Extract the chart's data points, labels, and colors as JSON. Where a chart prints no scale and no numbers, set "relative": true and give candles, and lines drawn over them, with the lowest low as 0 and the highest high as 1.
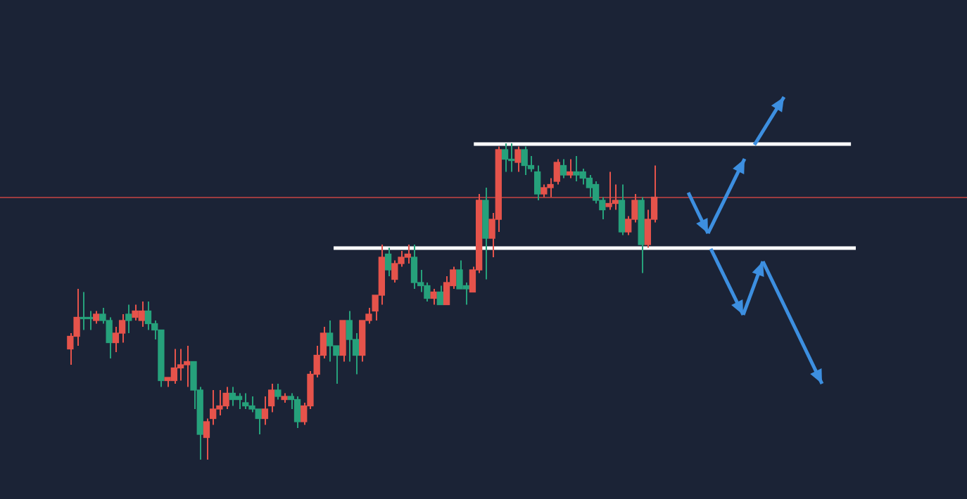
{
  "chart_data": {
    "type": "candlestick",
    "relative": true,
    "categories": [
      null,
      null,
      null,
      null,
      null,
      null,
      null,
      null,
      null,
      null,
      null,
      null,
      null,
      null,
      null,
      null,
      null,
      null,
      null,
      null,
      null,
      null,
      null,
      null,
      null,
      null,
      null,
      null,
      null,
      null,
      null,
      null,
      null,
      null,
      null,
      null,
      null,
      null,
      null,
      null,
      null,
      null,
      null,
      null,
      null,
      null,
      null,
      null,
      null,
      null,
      null,
      null,
      null,
      null,
      null,
      null,
      null,
      null,
      null,
      null,
      null,
      null,
      null,
      null,
      null,
      null,
      null,
      null,
      null,
      null,
      null,
      null,
      null,
      null,
      null,
      null,
      null,
      null,
      null,
      null,
      null,
      null,
      null,
      null,
      null,
      null,
      null,
      null,
      null,
      null,
      null
    ],
    "ohlc": [
      [
        0.35,
        0.4,
        0.3,
        0.39
      ],
      [
        0.39,
        0.54,
        0.36,
        0.45
      ],
      [
        0.45,
        0.53,
        0.41,
        0.45
      ],
      [
        0.45,
        0.47,
        0.41,
        0.45
      ],
      [
        0.44,
        0.47,
        0.43,
        0.46
      ],
      [
        0.46,
        0.48,
        0.43,
        0.44
      ],
      [
        0.44,
        0.45,
        0.32,
        0.37
      ],
      [
        0.37,
        0.42,
        0.34,
        0.4
      ],
      [
        0.4,
        0.46,
        0.37,
        0.44
      ],
      [
        0.46,
        0.49,
        0.4,
        0.44
      ],
      [
        0.45,
        0.49,
        0.44,
        0.47
      ],
      [
        0.44,
        0.5,
        0.42,
        0.47
      ],
      [
        0.47,
        0.5,
        0.41,
        0.43
      ],
      [
        0.43,
        0.44,
        0.38,
        0.41
      ],
      [
        0.41,
        0.41,
        0.23,
        0.25
      ],
      [
        0.25,
        0.26,
        0.23,
        0.26
      ],
      [
        0.25,
        0.35,
        0.24,
        0.29
      ],
      [
        0.29,
        0.35,
        0.25,
        0.3
      ],
      [
        0.3,
        0.36,
        0.23,
        0.31
      ],
      [
        0.31,
        0.31,
        0.16,
        0.22
      ],
      [
        0.22,
        0.23,
        0,
        0.08
      ],
      [
        0.07,
        0.13,
        0,
        0.12
      ],
      [
        0.13,
        0.22,
        0.11,
        0.16
      ],
      [
        0.16,
        0.22,
        0.14,
        0.17
      ],
      [
        0.17,
        0.23,
        0.16,
        0.21
      ],
      [
        0.21,
        0.23,
        0.17,
        0.19
      ],
      [
        0.2,
        0.21,
        0.16,
        0.19
      ],
      [
        0.18,
        0.21,
        0.16,
        0.17
      ],
      [
        0.17,
        0.2,
        0.15,
        0.16
      ],
      [
        0.16,
        0.16,
        0.08,
        0.13
      ],
      [
        0.13,
        0.2,
        0.11,
        0.16
      ],
      [
        0.17,
        0.24,
        0.15,
        0.22
      ],
      [
        0.22,
        0.24,
        0.19,
        0.2
      ],
      [
        0.19,
        0.21,
        0.18,
        0.2
      ],
      [
        0.2,
        0.21,
        0.16,
        0.19
      ],
      [
        0.19,
        0.2,
        0.1,
        0.12
      ],
      [
        0.12,
        0.18,
        0.11,
        0.17
      ],
      [
        0.17,
        0.28,
        0.16,
        0.27
      ],
      [
        0.27,
        0.36,
        0.26,
        0.33
      ],
      [
        0.33,
        0.42,
        0.32,
        0.4
      ],
      [
        0.4,
        0.44,
        0.31,
        0.36
      ],
      [
        0.36,
        0.36,
        0.24,
        0.33
      ],
      [
        0.33,
        0.44,
        0.31,
        0.44
      ],
      [
        0.44,
        0.47,
        0.31,
        0.38
      ],
      [
        0.38,
        0.4,
        0.27,
        0.33
      ],
      [
        0.33,
        0.44,
        0.31,
        0.44
      ],
      [
        0.44,
        0.48,
        0.43,
        0.46
      ],
      [
        0.47,
        0.52,
        0.44,
        0.52
      ],
      [
        0.52,
        0.68,
        0.49,
        0.64
      ],
      [
        0.65,
        0.67,
        0.58,
        0.6
      ],
      [
        0.57,
        0.63,
        0.56,
        0.62
      ],
      [
        0.62,
        0.66,
        0.61,
        0.64
      ],
      [
        0.64,
        0.68,
        0.62,
        0.65
      ],
      [
        0.64,
        0.68,
        0.54,
        0.56
      ],
      [
        0.56,
        0.6,
        0.53,
        0.55
      ],
      [
        0.55,
        0.56,
        0.5,
        0.51
      ],
      [
        0.51,
        0.54,
        0.49,
        0.53
      ],
      [
        0.53,
        0.55,
        0.49,
        0.49
      ],
      [
        0.49,
        0.58,
        0.49,
        0.56
      ],
      [
        0.55,
        0.61,
        0.54,
        0.6
      ],
      [
        0.6,
        0.63,
        0.54,
        0.54
      ],
      [
        0.55,
        0.56,
        0.49,
        0.54
      ],
      [
        0.53,
        0.61,
        0.53,
        0.6
      ],
      [
        0.6,
        0.84,
        0.59,
        0.82
      ],
      [
        0.82,
        0.86,
        0.57,
        0.7
      ],
      [
        0.7,
        0.78,
        0.64,
        0.76
      ],
      [
        0.76,
        0.99,
        0.72,
        0.98
      ],
      [
        0.98,
        1,
        0.91,
        0.95
      ],
      [
        0.95,
        1,
        0.91,
        0.95
      ],
      [
        0.94,
        0.99,
        0.91,
        0.98
      ],
      [
        0.98,
        0.99,
        0.9,
        0.93
      ],
      [
        0.93,
        0.96,
        0.91,
        0.92
      ],
      [
        0.91,
        0.93,
        0.82,
        0.84
      ],
      [
        0.84,
        0.87,
        0.83,
        0.86
      ],
      [
        0.86,
        0.89,
        0.83,
        0.87
      ],
      [
        0.88,
        0.95,
        0.87,
        0.94
      ],
      [
        0.93,
        0.95,
        0.89,
        0.9
      ],
      [
        0.9,
        0.95,
        0.89,
        0.91
      ],
      [
        0.91,
        0.96,
        0.88,
        0.9
      ],
      [
        0.91,
        0.92,
        0.87,
        0.89
      ],
      [
        0.89,
        0.9,
        0.83,
        0.86
      ],
      [
        0.87,
        0.88,
        0.81,
        0.82
      ],
      [
        0.82,
        0.83,
        0.76,
        0.79
      ],
      [
        0.8,
        0.91,
        0.79,
        0.81
      ],
      [
        0.81,
        0.87,
        0.79,
        0.82
      ],
      [
        0.82,
        0.87,
        0.71,
        0.72
      ],
      [
        0.72,
        0.77,
        0.71,
        0.76
      ],
      [
        0.76,
        0.84,
        0.75,
        0.82
      ],
      [
        0.82,
        0.83,
        0.59,
        0.68
      ],
      [
        0.68,
        0.79,
        0.67,
        0.76
      ],
      [
        0.76,
        0.93,
        0.75,
        0.83
      ]
    ],
    "colors": [
      "#e5534b",
      "#e5534b",
      "#26a17b",
      "#26a17b",
      "#e5534b",
      "#26a17b",
      "#26a17b",
      "#e5534b",
      "#e5534b",
      "#26a17b",
      "#e5534b",
      "#e5534b",
      "#26a17b",
      "#26a17b",
      "#26a17b",
      "#e5534b",
      "#e5534b",
      "#e5534b",
      "#e5534b",
      "#26a17b",
      "#26a17b",
      "#e5534b",
      "#e5534b",
      "#e5534b",
      "#e5534b",
      "#26a17b",
      "#26a17b",
      "#26a17b",
      "#26a17b",
      "#26a17b",
      "#e5534b",
      "#e5534b",
      "#26a17b",
      "#e5534b",
      "#26a17b",
      "#26a17b",
      "#e5534b",
      "#e5534b",
      "#e5534b",
      "#e5534b",
      "#26a17b",
      "#26a17b",
      "#e5534b",
      "#26a17b",
      "#26a17b",
      "#e5534b",
      "#e5534b",
      "#e5534b",
      "#e5534b",
      "#26a17b",
      "#e5534b",
      "#e5534b",
      "#e5534b",
      "#26a17b",
      "#26a17b",
      "#26a17b",
      "#e5534b",
      "#26a17b",
      "#e5534b",
      "#e5534b",
      "#26a17b",
      "#26a17b",
      "#e5534b",
      "#e5534b",
      "#26a17b",
      "#e5534b",
      "#e5534b",
      "#26a17b",
      "#26a17b",
      "#e5534b",
      "#26a17b",
      "#26a17b",
      "#26a17b",
      "#e5534b",
      "#e5534b",
      "#e5534b",
      "#26a17b",
      "#e5534b",
      "#26a17b",
      "#26a17b",
      "#26a17b",
      "#26a17b",
      "#26a17b",
      "#e5534b",
      "#e5534b",
      "#26a17b",
      "#e5534b",
      "#e5534b",
      "#26a17b",
      "#e5534b",
      "#e5534b"
    ],
    "ref_lines": [
      {
        "axis": "y",
        "value": 0.83,
        "color": "#9c3b3f"
      },
      {
        "axis": "y",
        "value": 1,
        "color": "#ffffff"
      },
      {
        "axis": "y",
        "value": 0.67,
        "color": "#ffffff"
      }
    ],
    "legend": false
  }
}
